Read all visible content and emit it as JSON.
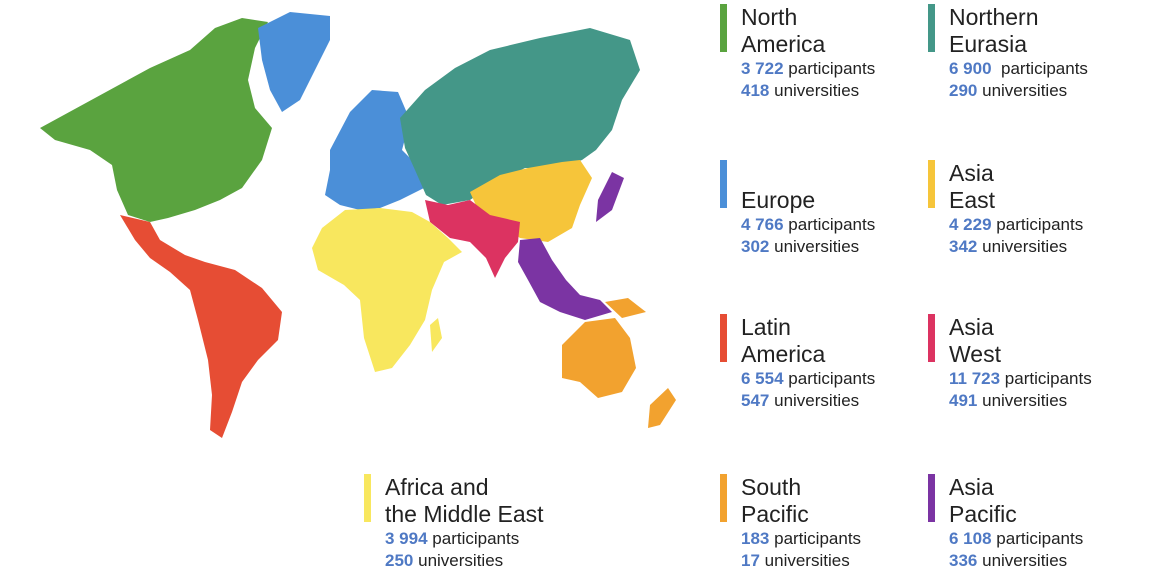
{
  "colors": {
    "north_america": "#5aa33f",
    "northern_eurasia": "#449788",
    "europe": "#4b8fd8",
    "asia_east": "#f6c53a",
    "latin_america": "#e64d34",
    "asia_west": "#dc3361",
    "africa_middle_east": "#f8e75e",
    "south_pacific": "#f2a22f",
    "asia_pacific": "#7b34a3",
    "number": "#4f79c4"
  },
  "regions": [
    {
      "key": "north_america",
      "name_lines": [
        "North",
        "America"
      ],
      "participants": "3 722",
      "participants_label": "participants",
      "universities": "418",
      "universities_label": "universities"
    },
    {
      "key": "northern_eurasia",
      "name_lines": [
        "Northern",
        "Eurasia"
      ],
      "participants": "6 900",
      "participants_label": "participants",
      "universities": "290",
      "universities_label": "universities"
    },
    {
      "key": "europe",
      "name_lines": [
        "",
        "Europe"
      ],
      "participants": "4 766",
      "participants_label": "participants",
      "universities": "302",
      "universities_label": "universities"
    },
    {
      "key": "asia_east",
      "name_lines": [
        "Asia",
        "East"
      ],
      "participants": "4 229",
      "participants_label": "participants",
      "universities": "342",
      "universities_label": "universities"
    },
    {
      "key": "latin_america",
      "name_lines": [
        "Latin",
        "America"
      ],
      "participants": "6 554",
      "participants_label": "participants",
      "universities": "547",
      "universities_label": "universities"
    },
    {
      "key": "asia_west",
      "name_lines": [
        "Asia",
        "West"
      ],
      "participants": "11 723",
      "participants_label": "participants",
      "universities": "491",
      "universities_label": "universities"
    },
    {
      "key": "africa_middle_east",
      "name_lines": [
        "Africa and",
        "the Middle East"
      ],
      "participants": "3 994",
      "participants_label": "participants",
      "universities": "250",
      "universities_label": "universities"
    },
    {
      "key": "south_pacific",
      "name_lines": [
        "South",
        "Pacific"
      ],
      "participants": "183",
      "participants_label": "participants",
      "universities": "17",
      "universities_label": "universities"
    },
    {
      "key": "asia_pacific",
      "name_lines": [
        "Asia",
        "Pacific"
      ],
      "participants": "6 108",
      "participants_label": "participants",
      "universities": "336",
      "universities_label": "universities"
    }
  ]
}
